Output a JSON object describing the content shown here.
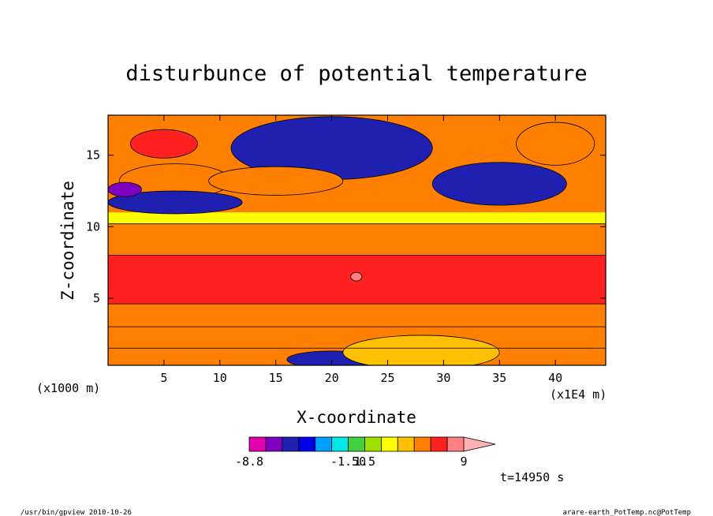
{
  "chart_data": {
    "type": "heatmap",
    "title": "disturbunce of potential temperature",
    "xlabel": "X-coordinate",
    "ylabel": "Z-coordinate",
    "x_unit_label": "(x1E4 m)",
    "y_unit_label": "(x1000 m)",
    "xlim": [
      0,
      44.5
    ],
    "ylim": [
      0.3,
      17.8
    ],
    "x_ticks": [
      5,
      10,
      15,
      20,
      25,
      30,
      35,
      40
    ],
    "y_ticks": [
      5,
      10,
      15
    ],
    "colorbar": {
      "tick_labels": [
        "-8.8",
        "-1.50",
        "1.5",
        "9"
      ],
      "colors": [
        "#e000b0",
        "#8000c0",
        "#2020b0",
        "#0000e8",
        "#00a0ff",
        "#00e8e8",
        "#40d040",
        "#a0e000",
        "#ffff00",
        "#ffc000",
        "#ff8000",
        "#ff2020",
        "#ff8080",
        "#ffb0b0"
      ]
    },
    "time_label": "t=14950 s",
    "footer_left": "/usr/bin/gpview  2010-10-26",
    "footer_right": "arare-earth_PotTemp.nc@PotTemp",
    "bands": [
      {
        "z": [
          0.3,
          1.5
        ],
        "color": "#ff8000"
      },
      {
        "z": [
          1.5,
          3.0
        ],
        "color": "#ff8000"
      },
      {
        "z": [
          3.0,
          4.6
        ],
        "color": "#ff8000"
      },
      {
        "z": [
          4.6,
          8.0
        ],
        "color": "#ff2020"
      },
      {
        "z": [
          8.0,
          10.2
        ],
        "color": "#ff8000"
      },
      {
        "z": [
          10.2,
          11.0
        ],
        "color": "#ffff00"
      }
    ],
    "features": [
      {
        "name": "upper-left warm",
        "x": 6,
        "z": 13.2,
        "rx": 5,
        "rz": 1.2,
        "color": "#ff8000"
      },
      {
        "name": "upper-left cold layer",
        "x": 6,
        "z": 11.7,
        "rx": 6,
        "rz": 0.8,
        "color": "#2020b0"
      },
      {
        "name": "upper-left purple",
        "x": 1.5,
        "z": 12.6,
        "rx": 1.5,
        "rz": 0.5,
        "color": "#8000c0"
      },
      {
        "name": "top-left warm core",
        "x": 5,
        "z": 15.8,
        "rx": 3,
        "rz": 1.0,
        "color": "#ff2020"
      },
      {
        "name": "upper cold core",
        "x": 22,
        "z": 15.8,
        "rx": 4,
        "rz": 1.6,
        "color": "#8000c0"
      },
      {
        "name": "upper cold ring",
        "x": 20,
        "z": 15.5,
        "rx": 9,
        "rz": 2.2,
        "color": "#2020b0"
      },
      {
        "name": "upper warm tongue",
        "x": 15,
        "z": 13.2,
        "rx": 6,
        "rz": 1.0,
        "color": "#ff8000"
      },
      {
        "name": "right cold pool",
        "x": 35,
        "z": 13.0,
        "rx": 6,
        "rz": 1.5,
        "color": "#2020b0"
      },
      {
        "name": "right upper warm",
        "x": 40,
        "z": 15.8,
        "rx": 3.5,
        "rz": 1.5,
        "color": "#ff8000"
      },
      {
        "name": "surface cold pool",
        "x": 20,
        "z": 0.7,
        "rx": 4,
        "rz": 0.6,
        "color": "#2020b0"
      },
      {
        "name": "surface yellow",
        "x": 28,
        "z": 1.2,
        "rx": 7,
        "rz": 1.2,
        "color": "#ffc000"
      },
      {
        "name": "high anomaly",
        "x": 22.2,
        "z": 6.5,
        "rx": 0.5,
        "rz": 0.3,
        "color": "#ff8080"
      }
    ]
  }
}
